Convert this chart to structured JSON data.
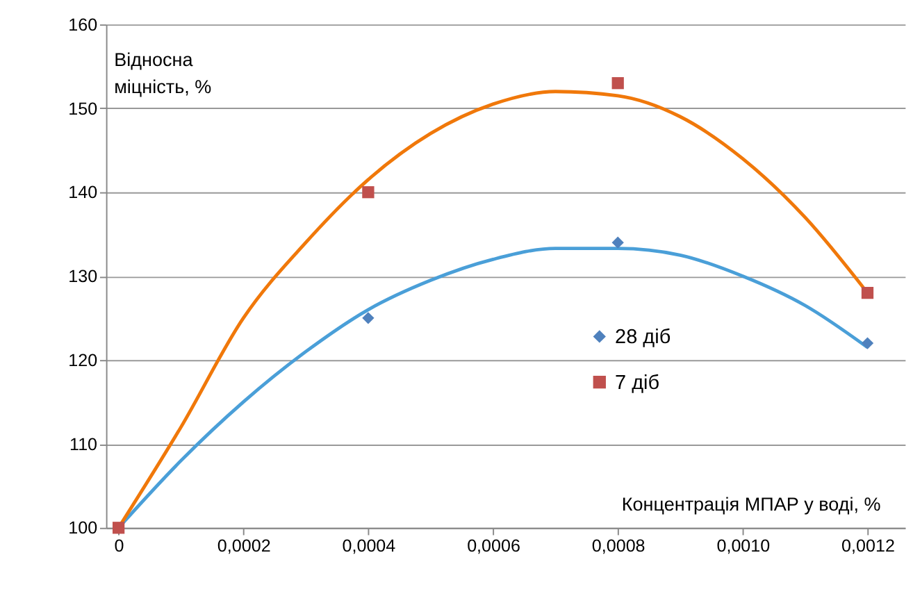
{
  "chart_data": {
    "type": "scatter",
    "xlabel": "Концентрація МПАР у воді, %",
    "ylabel": "Відносна міцність, %",
    "x": [
      0,
      0.0004,
      0.0008,
      0.0012
    ],
    "series": [
      {
        "name": "28 діб",
        "marker": "diamond",
        "color": "#4f81bd",
        "values": [
          null,
          125,
          134,
          122
        ]
      },
      {
        "name": "7 діб",
        "marker": "square",
        "color": "#c0504d",
        "values": [
          100,
          140,
          153,
          128
        ]
      },
      {
        "type": "line",
        "color": "#4a9fd8",
        "x": [
          0,
          0.0001,
          0.0002,
          0.0003,
          0.0004,
          0.0005,
          0.0006,
          0.0007,
          0.0008,
          0.0009,
          0.001,
          0.0011,
          0.0012
        ],
        "values": [
          100,
          108,
          115,
          121,
          126,
          129.5,
          132,
          133.3,
          133.3,
          132.5,
          130,
          126.5,
          121.5
        ]
      },
      {
        "type": "line",
        "color": "#f0780a",
        "x": [
          0,
          0.0001,
          0.0002,
          0.0003,
          0.0004,
          0.0005,
          0.0006,
          0.0007,
          0.0008,
          0.0009,
          0.001,
          0.0011,
          0.0012
        ],
        "values": [
          100,
          112,
          125,
          134,
          141.5,
          147,
          150.5,
          152,
          151.5,
          149,
          144,
          137,
          128
        ]
      }
    ],
    "xlim": [
      -2e-05,
      0.00126
    ],
    "xticks": [
      0,
      {
        "value": 0.0002,
        "label": "0,0002"
      },
      {
        "value": 0.0004,
        "label": "0,0004"
      },
      {
        "value": 0.0006,
        "label": "0,0006"
      },
      {
        "value": 0.0008,
        "label": "0,0008"
      },
      {
        "value": 0.001,
        "label": "0,0010"
      },
      {
        "value": 0.0012,
        "label": "0,0012"
      }
    ],
    "ylim": [
      100,
      160
    ],
    "yticks": [
      100,
      110,
      120,
      130,
      140,
      150,
      160
    ],
    "grid": "y",
    "legend": "center"
  }
}
